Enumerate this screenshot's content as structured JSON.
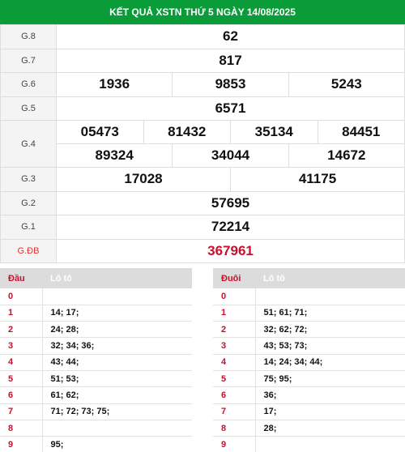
{
  "header": {
    "title": "KẾT QUẢ XSTN THỨ 5 NGÀY 14/08/2025"
  },
  "prizes": [
    {
      "label": "G.8",
      "numbers": [
        "62"
      ]
    },
    {
      "label": "G.7",
      "numbers": [
        "817"
      ]
    },
    {
      "label": "G.6",
      "numbers": [
        "1936",
        "9853",
        "5243"
      ]
    },
    {
      "label": "G.5",
      "numbers": [
        "6571"
      ]
    },
    {
      "label": "G.4",
      "row1": [
        "05473",
        "81432",
        "35134",
        "84451"
      ],
      "row2": [
        "89324",
        "34044",
        "14672"
      ]
    },
    {
      "label": "G.3",
      "numbers": [
        "17028",
        "41175"
      ]
    },
    {
      "label": "G.2",
      "numbers": [
        "57695"
      ]
    },
    {
      "label": "G.1",
      "numbers": [
        "72214"
      ]
    },
    {
      "label": "G.ĐB",
      "numbers": [
        "367961"
      ]
    }
  ],
  "dau_table": {
    "col1": "Đầu",
    "col2": "Lô tô",
    "rows": [
      {
        "key": "0",
        "value": ""
      },
      {
        "key": "1",
        "value": "14; 17;"
      },
      {
        "key": "2",
        "value": "24; 28;"
      },
      {
        "key": "3",
        "value": "32; 34; 36;"
      },
      {
        "key": "4",
        "value": "43; 44;"
      },
      {
        "key": "5",
        "value": "51; 53;"
      },
      {
        "key": "6",
        "value": "61; 62;"
      },
      {
        "key": "7",
        "value": "71; 72; 73; 75;"
      },
      {
        "key": "8",
        "value": ""
      },
      {
        "key": "9",
        "value": "95;"
      }
    ]
  },
  "duoi_table": {
    "col1": "Đuôi",
    "col2": "Lô tô",
    "rows": [
      {
        "key": "0",
        "value": ""
      },
      {
        "key": "1",
        "value": "51; 61; 71;"
      },
      {
        "key": "2",
        "value": "32; 62; 72;"
      },
      {
        "key": "3",
        "value": "43; 53; 73;"
      },
      {
        "key": "4",
        "value": "14; 24; 34; 44;"
      },
      {
        "key": "5",
        "value": "75; 95;"
      },
      {
        "key": "6",
        "value": "36;"
      },
      {
        "key": "7",
        "value": "17;"
      },
      {
        "key": "8",
        "value": "28;"
      },
      {
        "key": "9",
        "value": ""
      }
    ]
  },
  "colors": {
    "header_bg": "#0b9c3a",
    "special_prize": "#c8102e",
    "loto_key": "#c8102e"
  }
}
